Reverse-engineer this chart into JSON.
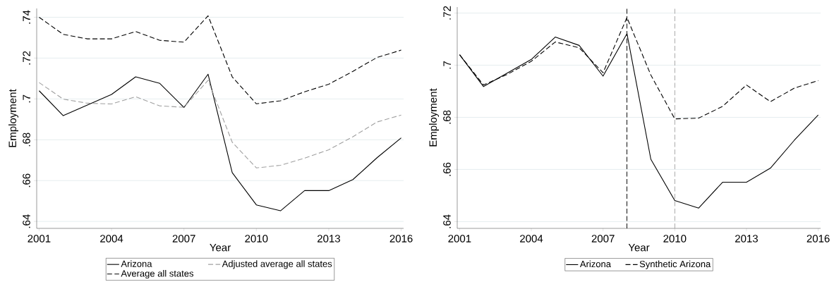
{
  "chart_data": [
    {
      "type": "line",
      "xlabel": "Year",
      "ylabel": "Employment",
      "x": [
        2001,
        2002,
        2003,
        2004,
        2005,
        2006,
        2007,
        2008,
        2009,
        2010,
        2011,
        2012,
        2013,
        2014,
        2015,
        2016
      ],
      "series": [
        {
          "name": "Arizona",
          "color": "#000000",
          "line_style": "solid",
          "values": [
            0.704,
            0.6918,
            0.697,
            0.7022,
            0.7108,
            0.7076,
            0.6958,
            0.7121,
            0.6639,
            0.6481,
            0.6452,
            0.6551,
            0.6551,
            0.6605,
            0.6712,
            0.6809
          ]
        },
        {
          "name": "Adjusted average all states",
          "color": "#a0a0a0",
          "line_style": "dashed",
          "values": [
            0.708,
            0.6999,
            0.6979,
            0.6975,
            0.7011,
            0.6966,
            0.6959,
            0.7091,
            0.6788,
            0.6662,
            0.6675,
            0.671,
            0.6751,
            0.6815,
            0.6887,
            0.6921
          ]
        },
        {
          "name": "Average all states",
          "color": "#000000",
          "line_style": "dashed",
          "values": [
            0.74,
            0.7316,
            0.7294,
            0.7294,
            0.733,
            0.7287,
            0.7278,
            0.7407,
            0.7108,
            0.6976,
            0.6991,
            0.7035,
            0.7072,
            0.7135,
            0.7203,
            0.7239
          ]
        }
      ],
      "xlim": [
        2000.9,
        2016.1
      ],
      "ylim": [
        0.6366,
        0.7443
      ],
      "xticks": [
        2001,
        2004,
        2007,
        2010,
        2013,
        2016
      ],
      "yticks": [
        {
          "value": 0.64,
          "label": ".64"
        },
        {
          "value": 0.66,
          "label": ".66"
        },
        {
          "value": 0.68,
          "label": ".68"
        },
        {
          "value": 0.7,
          "label": ".7"
        },
        {
          "value": 0.72,
          "label": ".72"
        },
        {
          "value": 0.74,
          "label": ".74"
        }
      ],
      "grid": "y",
      "legend": "bottom"
    },
    {
      "type": "line",
      "xlabel": "Year",
      "ylabel": "Employment",
      "x": [
        2001,
        2002,
        2003,
        2004,
        2005,
        2006,
        2007,
        2008,
        2009,
        2010,
        2011,
        2012,
        2013,
        2014,
        2015,
        2016
      ],
      "series": [
        {
          "name": "Arizona",
          "color": "#000000",
          "line_style": "solid",
          "values": [
            0.704,
            0.6918,
            0.697,
            0.7022,
            0.7108,
            0.7076,
            0.6958,
            0.7121,
            0.6639,
            0.6481,
            0.6452,
            0.6551,
            0.6551,
            0.6605,
            0.6712,
            0.6809
          ]
        },
        {
          "name": "Synthetic Arizona",
          "color": "#000000",
          "line_style": "dashed",
          "values": [
            0.704,
            0.6924,
            0.6965,
            0.7015,
            0.7089,
            0.7067,
            0.6971,
            0.7183,
            0.6962,
            0.6794,
            0.6797,
            0.6842,
            0.6924,
            0.686,
            0.6912,
            0.6941
          ]
        }
      ],
      "xlim": [
        2000.9,
        2016.1
      ],
      "ylim": [
        0.6374,
        0.7223
      ],
      "xticks": [
        2001,
        2004,
        2007,
        2010,
        2013,
        2016
      ],
      "yticks": [
        {
          "value": 0.64,
          "label": ".64"
        },
        {
          "value": 0.66,
          "label": ".66"
        },
        {
          "value": 0.68,
          "label": ".68"
        },
        {
          "value": 0.7,
          "label": ".7"
        },
        {
          "value": 0.72,
          "label": ".72"
        }
      ],
      "ref_lines": [
        {
          "axis": "x",
          "value": 2008,
          "color": "#000000",
          "line_style": "dashed"
        },
        {
          "axis": "x",
          "value": 2010,
          "color": "#a0a0a0",
          "line_style": "dashed"
        }
      ],
      "grid": "y",
      "legend": "bottom"
    }
  ]
}
